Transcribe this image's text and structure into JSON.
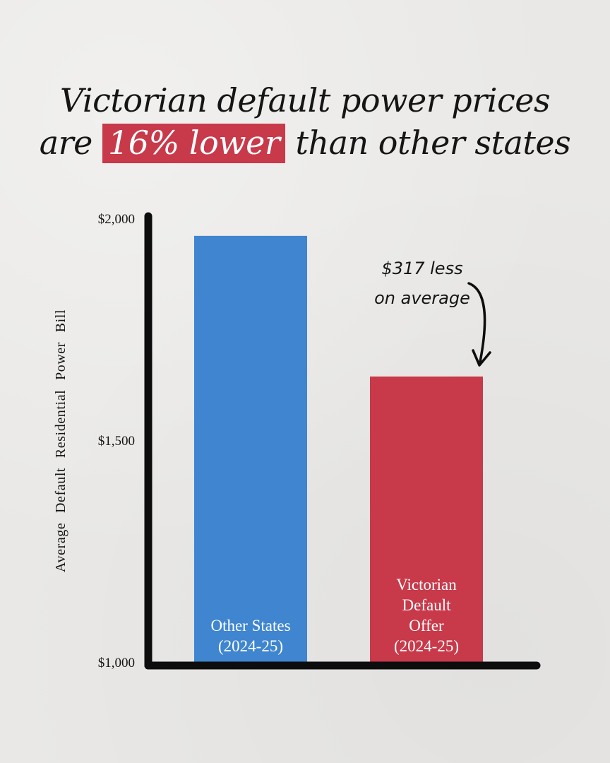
{
  "title": {
    "line1": "Victorian default power prices",
    "line2_before": "are",
    "highlight": "16% lower",
    "line2_after": "than other states"
  },
  "colors": {
    "background": "#e9e8e6",
    "other_states": "#3f85d0",
    "victorian": "#c8394a",
    "axis": "#0d0d0d",
    "highlight_bg": "#c8394a"
  },
  "chart_data": {
    "type": "bar",
    "categories": [
      "Other States (2024-25)",
      "Victorian Default Offer (2024-25)"
    ],
    "category_lines": [
      [
        "Other States",
        "(2024-25)"
      ],
      [
        "Victorian",
        "Default",
        "Offer",
        "(2024-25)"
      ]
    ],
    "values": [
      1962,
      1645
    ],
    "ylim": [
      1000,
      2000
    ],
    "yticks": [
      1000,
      1500,
      2000
    ],
    "ytick_labels": [
      "$1,000",
      "$1,500",
      "$2,000"
    ],
    "ylabel": "Average Default Residential Power Bill",
    "xlabel": "",
    "grid": false,
    "annotation": {
      "lines": [
        "$317 less",
        "on average"
      ],
      "target_category": "Victorian Default Offer (2024-25)"
    }
  }
}
